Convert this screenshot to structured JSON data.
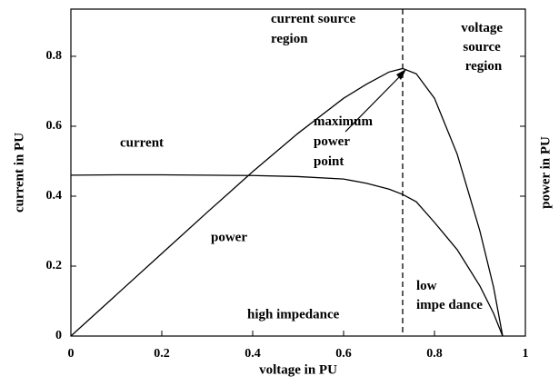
{
  "chart_data": {
    "type": "line",
    "xlabel": "voltage in PU",
    "ylabel": "current in PU",
    "y2label": "power in PU",
    "x": [
      0,
      0.1,
      0.2,
      0.3,
      0.4,
      0.5,
      0.6,
      0.65,
      0.7,
      0.73,
      0.76,
      0.8,
      0.85,
      0.9,
      0.93,
      0.95
    ],
    "series": [
      {
        "name": "current",
        "color": "#000000",
        "values": [
          0.46,
          0.461,
          0.461,
          0.46,
          0.459,
          0.456,
          0.449,
          0.437,
          0.42,
          0.405,
          0.384,
          0.325,
          0.247,
          0.143,
          0.065,
          0
        ]
      },
      {
        "name": "power",
        "color": "#000000",
        "values": [
          0,
          0.118,
          0.236,
          0.354,
          0.47,
          0.58,
          0.68,
          0.72,
          0.755,
          0.765,
          0.75,
          0.68,
          0.52,
          0.3,
          0.14,
          0
        ]
      }
    ],
    "xlim": [
      0,
      1
    ],
    "xticks": [
      0,
      0.2,
      0.4,
      0.6,
      0.8,
      1
    ],
    "ylim": [
      0,
      0.935
    ],
    "yticks": [
      0,
      0.2,
      0.4,
      0.6,
      0.8
    ],
    "vline": 0.73,
    "annotations": [
      {
        "lines": [
          "current source",
          "region"
        ]
      },
      {
        "lines": [
          "voltage",
          "source",
          "region"
        ]
      },
      {
        "lines": [
          "maximum",
          "power",
          "point"
        ]
      },
      {
        "lines": [
          "high impedance"
        ]
      },
      {
        "lines": [
          "low",
          "impe dance"
        ]
      }
    ]
  }
}
